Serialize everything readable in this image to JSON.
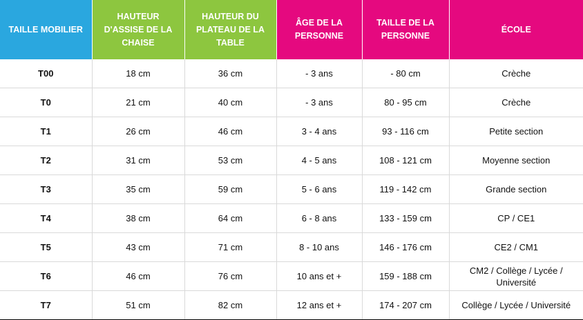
{
  "colors": {
    "blue": "#2aa7df",
    "green": "#8dc63f",
    "pink": "#e5097f"
  },
  "columns": [
    {
      "label": "TAILLE MOBILIER",
      "color": "#2aa7df"
    },
    {
      "label": "HAUTEUR D'ASSISE DE LA CHAISE",
      "color": "#8dc63f"
    },
    {
      "label": "HAUTEUR DU PLATEAU DE LA TABLE",
      "color": "#8dc63f"
    },
    {
      "label": "ÂGE DE LA PERSONNE",
      "color": "#e5097f"
    },
    {
      "label": "TAILLE DE LA PERSONNE",
      "color": "#e5097f"
    },
    {
      "label": "ÉCOLE",
      "color": "#e5097f"
    }
  ],
  "rows": [
    [
      "T00",
      "18 cm",
      "36 cm",
      "- 3 ans",
      "- 80 cm",
      "Crèche"
    ],
    [
      "T0",
      "21 cm",
      "40 cm",
      "- 3 ans",
      "80 - 95 cm",
      "Crèche"
    ],
    [
      "T1",
      "26 cm",
      "46 cm",
      "3 - 4 ans",
      "93 - 116 cm",
      "Petite section"
    ],
    [
      "T2",
      "31 cm",
      "53 cm",
      "4 - 5 ans",
      "108 - 121 cm",
      "Moyenne section"
    ],
    [
      "T3",
      "35 cm",
      "59 cm",
      "5 - 6 ans",
      "119 - 142 cm",
      "Grande section"
    ],
    [
      "T4",
      "38 cm",
      "64 cm",
      "6 - 8 ans",
      "133 - 159 cm",
      "CP / CE1"
    ],
    [
      "T5",
      "43 cm",
      "71 cm",
      "8 - 10 ans",
      "146 - 176 cm",
      "CE2 / CM1"
    ],
    [
      "T6",
      "46 cm",
      "76 cm",
      "10 ans et +",
      "159 - 188 cm",
      "CM2 / Collège / Lycée / Université"
    ],
    [
      "T7",
      "51 cm",
      "82 cm",
      "12 ans et +",
      "174 - 207 cm",
      "Collège / Lycée / Université"
    ]
  ]
}
